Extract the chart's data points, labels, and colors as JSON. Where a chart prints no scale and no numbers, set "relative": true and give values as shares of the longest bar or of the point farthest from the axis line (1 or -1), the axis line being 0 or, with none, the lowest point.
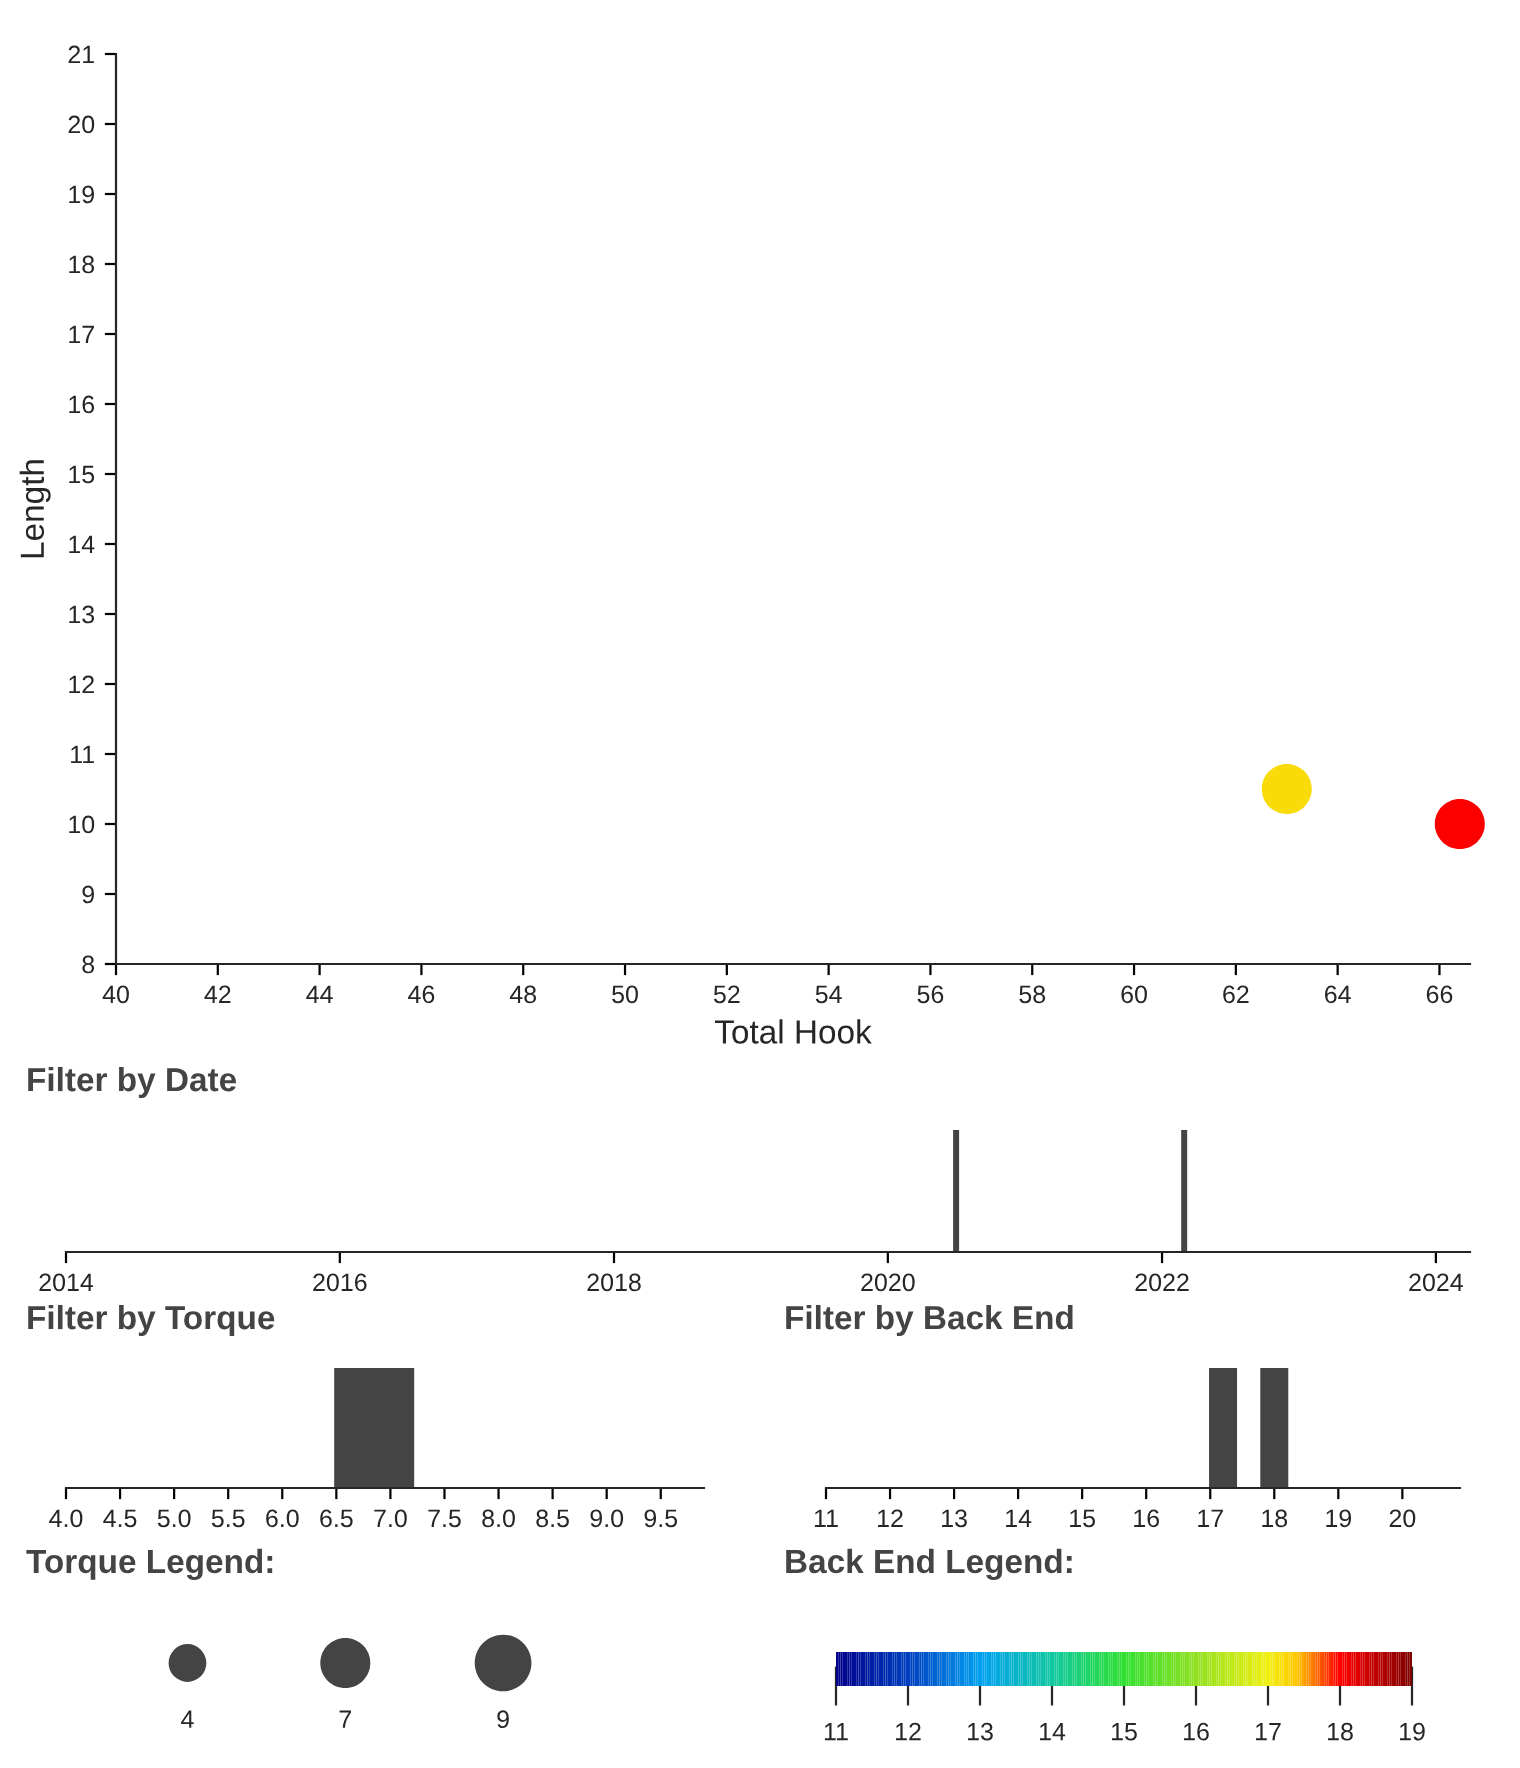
{
  "chart_data": [
    {
      "type": "bubble",
      "xlabel": "Total Hook",
      "ylabel": "Length",
      "x": [
        63.0,
        66.4
      ],
      "values": [
        10.5,
        10.0
      ],
      "sizes": [
        7,
        7
      ],
      "cvalues": [
        17.2,
        18.0
      ],
      "xlim": [
        40,
        66.6
      ],
      "xticks": [
        40,
        42,
        44,
        46,
        48,
        50,
        52,
        54,
        56,
        58,
        60,
        62,
        64,
        66
      ],
      "ylim": [
        8,
        21
      ],
      "yticks": [
        8,
        9,
        10,
        11,
        12,
        13,
        14,
        15,
        16,
        17,
        18,
        19,
        20,
        21
      ],
      "legend_title": "Torque Legend:",
      "size_legend": [
        4,
        7,
        9
      ],
      "clabel": "Back End Legend:",
      "clim": [
        11,
        19
      ],
      "cticks": [
        11,
        12,
        13,
        14,
        15,
        16,
        17,
        18,
        19
      ]
    },
    {
      "type": "bar",
      "title": "Filter by Date",
      "x": [
        "2020-07",
        "2022-03"
      ],
      "values": [
        1,
        1
      ],
      "relative": true,
      "color": "#444444",
      "xlim": [
        "2014",
        "2024-04"
      ],
      "xticks": [
        "2014",
        "2016",
        "2018",
        "2020",
        "2022",
        "2024"
      ]
    },
    {
      "type": "bar",
      "title": "Filter by Torque",
      "x": [
        6.85
      ],
      "values": [
        1
      ],
      "relative": true,
      "color": "#444444",
      "xlim": [
        4.0,
        9.9
      ],
      "xticks": [
        {
          "value": 4,
          "label": "4.0"
        },
        4.5,
        {
          "value": 5,
          "label": "5.0"
        },
        5.5,
        {
          "value": 6,
          "label": "6.0"
        },
        6.5,
        {
          "value": 7,
          "label": "7.0"
        },
        7.5,
        {
          "value": 8,
          "label": "8.0"
        },
        8.5,
        {
          "value": 9,
          "label": "9.0"
        },
        9.5
      ]
    },
    {
      "type": "bar",
      "title": "Filter by Back End",
      "x": [
        17.2,
        18.0
      ],
      "values": [
        1,
        1
      ],
      "relative": true,
      "color": "#444444",
      "xlim": [
        11,
        20.9
      ],
      "xticks": [
        11,
        12,
        13,
        14,
        15,
        16,
        17,
        18,
        19,
        20
      ]
    }
  ]
}
